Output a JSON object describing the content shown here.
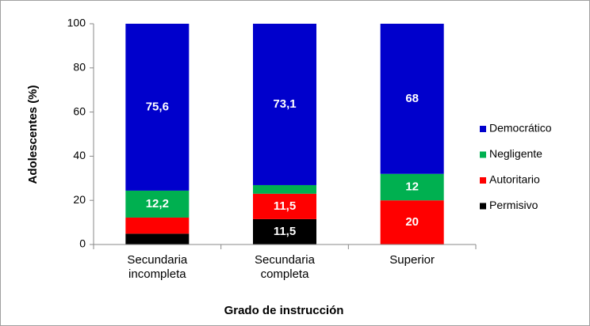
{
  "chart_data": {
    "type": "stacked_bar",
    "x_label": "Grado de instrucción",
    "y_label": "Adolescentes (%)",
    "categories": [
      "Secundaria incompleta",
      "Secundaria completa",
      "Superior"
    ],
    "series": [
      {
        "name": "Permisivo",
        "color": "#000000",
        "values": [
          4.9,
          11.5,
          0
        ],
        "value_labels": [
          null,
          "11,5",
          null
        ]
      },
      {
        "name": "Autoritario",
        "color": "#ff0000",
        "values": [
          7.3,
          11.5,
          20
        ],
        "value_labels": [
          null,
          "11,5",
          "20"
        ]
      },
      {
        "name": "Negligente",
        "color": "#00b050",
        "values": [
          12.2,
          3.9,
          12
        ],
        "value_labels": [
          "12,2",
          null,
          "12"
        ]
      },
      {
        "name": "Democrático",
        "color": "#0000cc",
        "values": [
          75.6,
          73.1,
          68
        ],
        "value_labels": [
          "75,6",
          "73,1",
          "68"
        ]
      }
    ],
    "ylim": [
      0,
      100
    ],
    "yticks": [
      0,
      20,
      40,
      60,
      80,
      100
    ],
    "legend": "right"
  }
}
